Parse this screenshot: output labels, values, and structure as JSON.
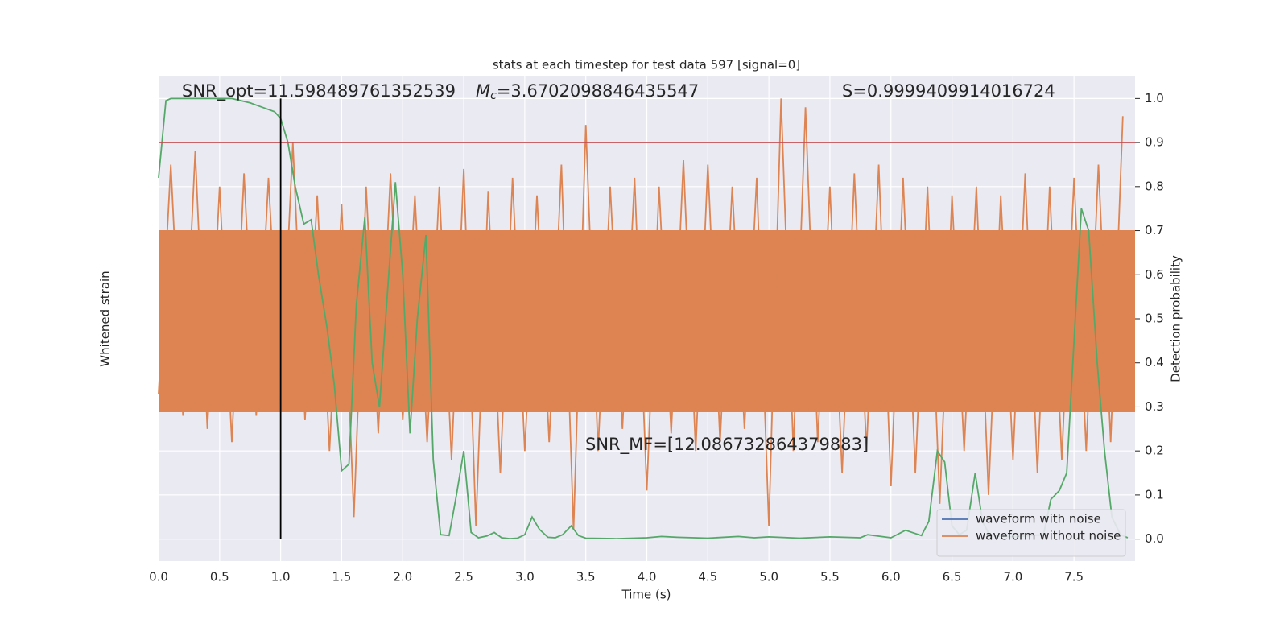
{
  "chart_data": {
    "type": "line",
    "title": "stats at each timestep for test data 597 [signal=0]",
    "xlabel": "Time (s)",
    "ylabel_left": "Whitened strain",
    "ylabel": "Detection probability",
    "xlim": [
      0,
      8.0
    ],
    "ylim": [
      -0.05,
      1.05
    ],
    "xticks": [
      {
        "value": 0,
        "label": "0.0"
      },
      0.5,
      {
        "value": 1,
        "label": "1.0"
      },
      1.5,
      {
        "value": 2,
        "label": "2.0"
      },
      2.5,
      {
        "value": 3,
        "label": "3.0"
      },
      3.5,
      {
        "value": 4,
        "label": "4.0"
      },
      4.5,
      {
        "value": 5,
        "label": "5.0"
      },
      5.5,
      {
        "value": 6,
        "label": "6.0"
      },
      6.5,
      {
        "value": 7,
        "label": "7.0"
      },
      7.5
    ],
    "yticks": [
      {
        "value": 0,
        "label": "0.0"
      },
      0.1,
      0.2,
      0.3,
      0.4,
      0.5,
      0.6,
      0.7,
      0.8,
      0.9,
      {
        "value": 1,
        "label": "1.0"
      }
    ],
    "grid": true,
    "legend": "lower right",
    "threshold": {
      "value": 0.9,
      "color": "#c44e52"
    },
    "marker_time": {
      "value": 1.0,
      "color": "#000000"
    },
    "annotations": {
      "snr_opt": "SNR_opt=11.598489761352539",
      "mc_symbol": "M",
      "mc_sub": "c",
      "mc_value": "=3.6702098846435547",
      "s_value": "S=0.9999409914016724",
      "snr_mf": "SNR_MF=[12.086732864379883]"
    },
    "series": [
      {
        "name": "waveform with noise",
        "color": "#4c72b0",
        "x": [],
        "values": []
      },
      {
        "name": "waveform without noise",
        "color": "#dd8452",
        "x": [
          0.0,
          0.1,
          0.2,
          0.3,
          0.4,
          0.5,
          0.6,
          0.7,
          0.8,
          0.9,
          1.0,
          1.1,
          1.2,
          1.3,
          1.4,
          1.5,
          1.6,
          1.7,
          1.8,
          1.9,
          2.0,
          2.1,
          2.2,
          2.3,
          2.4,
          2.5,
          2.6,
          2.7,
          2.8,
          2.9,
          3.0,
          3.1,
          3.2,
          3.3,
          3.4,
          3.5,
          3.6,
          3.7,
          3.8,
          3.9,
          4.0,
          4.1,
          4.2,
          4.3,
          4.4,
          4.5,
          4.6,
          4.7,
          4.8,
          4.9,
          5.0,
          5.1,
          5.2,
          5.3,
          5.4,
          5.5,
          5.6,
          5.7,
          5.8,
          5.9,
          6.0,
          6.1,
          6.2,
          6.3,
          6.4,
          6.5,
          6.6,
          6.7,
          6.8,
          6.9,
          7.0,
          7.1,
          7.2,
          7.3,
          7.4,
          7.5,
          7.6,
          7.7,
          7.8,
          7.9
        ],
        "values": [
          0.33,
          0.85,
          0.28,
          0.88,
          0.25,
          0.8,
          0.22,
          0.83,
          0.28,
          0.82,
          0.3,
          0.9,
          0.27,
          0.78,
          0.2,
          0.76,
          0.05,
          0.8,
          0.24,
          0.83,
          0.27,
          0.78,
          0.22,
          0.8,
          0.18,
          0.84,
          0.03,
          0.79,
          0.15,
          0.82,
          0.2,
          0.78,
          0.22,
          0.85,
          0.02,
          0.94,
          0.2,
          0.8,
          0.25,
          0.82,
          0.11,
          0.8,
          0.24,
          0.86,
          0.2,
          0.85,
          0.22,
          0.8,
          0.25,
          0.82,
          0.03,
          1.0,
          0.2,
          0.98,
          0.22,
          0.8,
          0.15,
          0.83,
          0.2,
          0.85,
          0.12,
          0.82,
          0.15,
          0.8,
          0.08,
          0.78,
          0.2,
          0.8,
          0.1,
          0.78,
          0.18,
          0.83,
          0.15,
          0.8,
          0.18,
          0.82,
          0.2,
          0.85,
          0.22,
          0.96
        ]
      },
      {
        "color": "#55a868",
        "x": [
          0.0,
          0.06,
          0.1,
          0.2,
          0.4,
          0.6,
          0.75,
          0.85,
          0.95,
          1.0,
          1.06,
          1.12,
          1.19,
          1.25,
          1.31,
          1.38,
          1.44,
          1.5,
          1.56,
          1.62,
          1.69,
          1.75,
          1.81,
          1.88,
          1.94,
          2.0,
          2.06,
          2.12,
          2.19,
          2.25,
          2.31,
          2.38,
          2.44,
          2.5,
          2.56,
          2.62,
          2.69,
          2.75,
          2.81,
          2.88,
          2.94,
          3.0,
          3.06,
          3.12,
          3.19,
          3.25,
          3.31,
          3.38,
          3.44,
          3.5,
          3.75,
          4.0,
          4.12,
          4.25,
          4.5,
          4.75,
          4.88,
          5.0,
          5.25,
          5.5,
          5.75,
          5.81,
          6.0,
          6.12,
          6.25,
          6.31,
          6.38,
          6.44,
          6.5,
          6.56,
          6.62,
          6.69,
          6.75,
          6.81,
          7.0,
          7.25,
          7.31,
          7.38,
          7.44,
          7.5,
          7.56,
          7.62,
          7.69,
          7.75,
          7.81,
          7.88,
          7.94
        ],
        "values": [
          0.82,
          0.995,
          1.0,
          1.0,
          1.0,
          1.0,
          0.99,
          0.98,
          0.97,
          0.955,
          0.9,
          0.8,
          0.715,
          0.725,
          0.6,
          0.48,
          0.35,
          0.155,
          0.17,
          0.53,
          0.73,
          0.4,
          0.3,
          0.58,
          0.81,
          0.6,
          0.24,
          0.5,
          0.69,
          0.18,
          0.01,
          0.008,
          0.1,
          0.2,
          0.015,
          0.003,
          0.007,
          0.015,
          0.003,
          0.001,
          0.002,
          0.01,
          0.05,
          0.022,
          0.004,
          0.003,
          0.01,
          0.03,
          0.008,
          0.002,
          0.001,
          0.003,
          0.006,
          0.004,
          0.002,
          0.006,
          0.003,
          0.005,
          0.002,
          0.005,
          0.003,
          0.01,
          0.003,
          0.02,
          0.008,
          0.04,
          0.2,
          0.175,
          0.03,
          0.01,
          0.02,
          0.15,
          0.04,
          0.008,
          0.005,
          0.01,
          0.09,
          0.11,
          0.15,
          0.45,
          0.75,
          0.7,
          0.4,
          0.2,
          0.05,
          0.01,
          0.003
        ]
      }
    ]
  }
}
